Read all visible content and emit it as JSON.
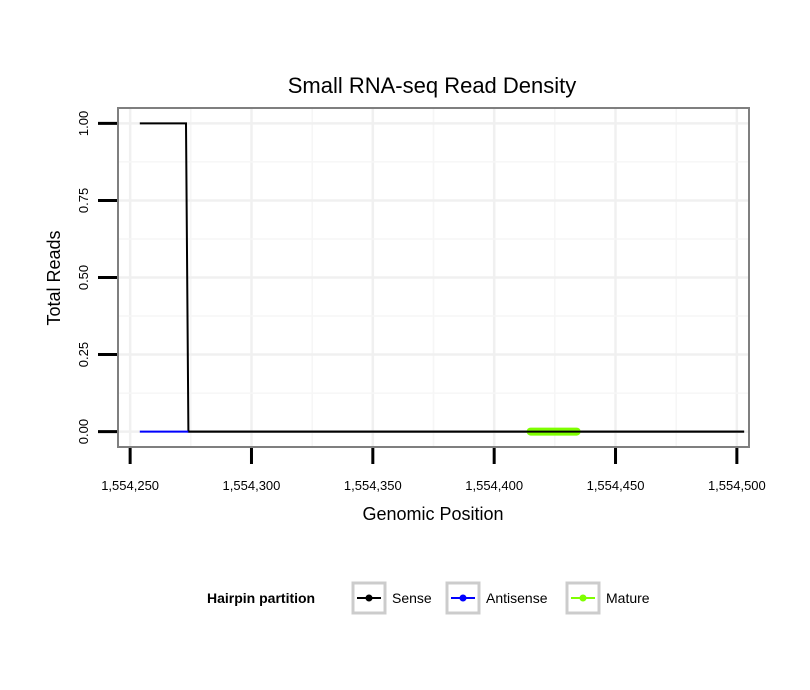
{
  "chart_data": {
    "type": "line",
    "title": "Small RNA-seq Read Density",
    "xlabel": "Genomic Position",
    "ylabel": "Total Reads",
    "xlim": [
      1554245,
      1554505
    ],
    "ylim": [
      -0.05,
      1.05
    ],
    "x_ticks": [
      1554250,
      1554300,
      1554350,
      1554400,
      1554450,
      1554500
    ],
    "x_tick_labels": [
      "1,554,250",
      "1,554,300",
      "1,554,350",
      "1,554,400",
      "1,554,450",
      "1,554,500"
    ],
    "y_ticks": [
      0,
      0.25,
      0.5,
      0.75,
      1.0
    ],
    "y_tick_labels": [
      "0.00",
      "0.25",
      "0.50",
      "0.75",
      "1.00"
    ],
    "grid": true,
    "legend_position": "bottom",
    "legend_title": "Hairpin partition",
    "series": [
      {
        "name": "Sense",
        "color": "#000000",
        "x": [
          1554254,
          1554273,
          1554274,
          1554503
        ],
        "y": [
          1,
          1,
          0,
          0
        ]
      },
      {
        "name": "Antisense",
        "color": "#0000ff",
        "x": [
          1554254,
          1554274
        ],
        "y": [
          0,
          0
        ]
      },
      {
        "name": "Mature",
        "color": "#7fff00",
        "x": [
          1554415,
          1554434
        ],
        "y": [
          0,
          0
        ]
      }
    ]
  }
}
